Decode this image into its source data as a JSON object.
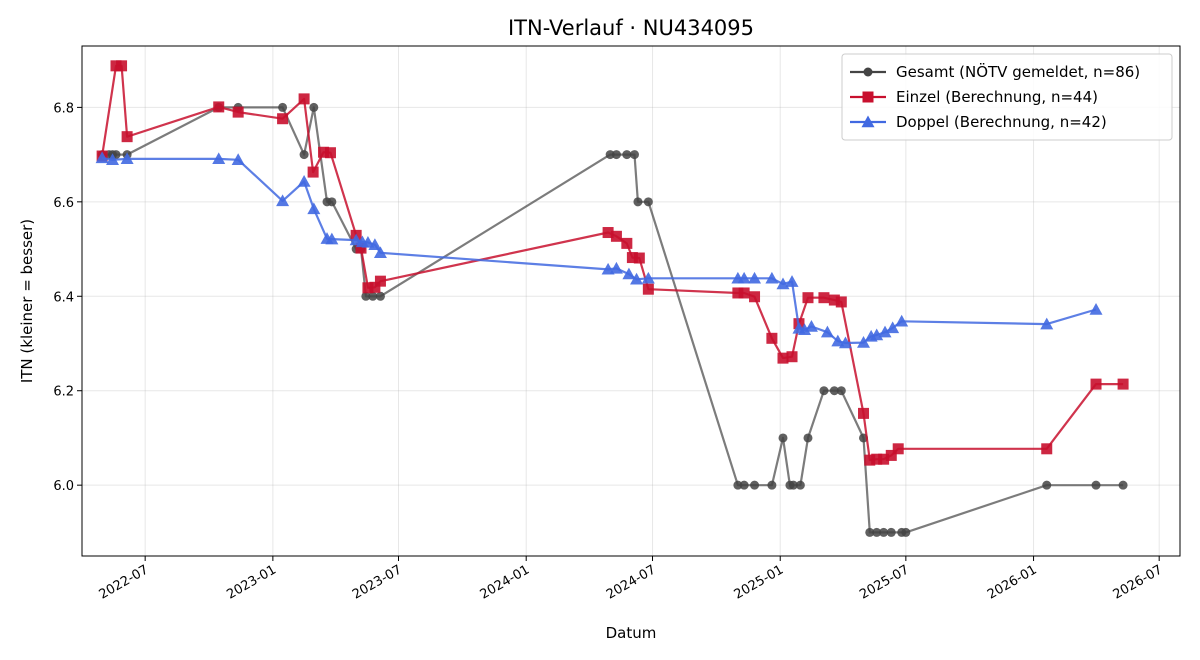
{
  "chart_data": {
    "type": "line",
    "title": "ITN-Verlauf · NU434095",
    "xlabel": "Datum",
    "ylabel": "ITN  (kleiner = besser)",
    "xlim": [
      "2022-04-01",
      "2026-07-31"
    ],
    "ylim": [
      5.85,
      6.93
    ],
    "x_ticks": [
      "2022-07",
      "2023-01",
      "2023-07",
      "2024-01",
      "2024-07",
      "2025-01",
      "2025-07",
      "2026-01",
      "2026-07"
    ],
    "y_ticks": [
      6.0,
      6.2,
      6.4,
      6.6,
      6.8
    ],
    "grid": true,
    "legend_position": "top-right",
    "series": [
      {
        "name": "Gesamt (NÖTV gemeldet, n=86)",
        "color": "#444444",
        "marker": "circle",
        "points": [
          [
            "2022-04-30",
            6.7
          ],
          [
            "2022-05-10",
            6.7
          ],
          [
            "2022-05-15",
            6.7
          ],
          [
            "2022-05-20",
            6.7
          ],
          [
            "2022-06-05",
            6.7
          ],
          [
            "2022-10-15",
            6.8
          ],
          [
            "2022-11-12",
            6.8
          ],
          [
            "2023-01-15",
            6.8
          ],
          [
            "2023-02-15",
            6.7
          ],
          [
            "2023-03-01",
            6.8
          ],
          [
            "2023-03-20",
            6.6
          ],
          [
            "2023-03-27",
            6.6
          ],
          [
            "2023-05-01",
            6.5
          ],
          [
            "2023-05-08",
            6.5
          ],
          [
            "2023-05-15",
            6.4
          ],
          [
            "2023-05-25",
            6.4
          ],
          [
            "2023-06-05",
            6.4
          ],
          [
            "2024-05-01",
            6.7
          ],
          [
            "2024-05-10",
            6.7
          ],
          [
            "2024-05-25",
            6.7
          ],
          [
            "2024-06-05",
            6.7
          ],
          [
            "2024-06-10",
            6.6
          ],
          [
            "2024-06-25",
            6.6
          ],
          [
            "2024-11-01",
            6.0
          ],
          [
            "2024-11-10",
            6.0
          ],
          [
            "2024-11-25",
            6.0
          ],
          [
            "2024-12-20",
            6.0
          ],
          [
            "2025-01-05",
            6.1
          ],
          [
            "2025-01-15",
            6.0
          ],
          [
            "2025-01-20",
            6.0
          ],
          [
            "2025-01-30",
            6.0
          ],
          [
            "2025-02-10",
            6.1
          ],
          [
            "2025-03-05",
            6.2
          ],
          [
            "2025-03-20",
            6.2
          ],
          [
            "2025-03-30",
            6.2
          ],
          [
            "2025-05-01",
            6.1
          ],
          [
            "2025-05-10",
            5.9
          ],
          [
            "2025-05-20",
            5.9
          ],
          [
            "2025-05-30",
            5.9
          ],
          [
            "2025-06-10",
            5.9
          ],
          [
            "2025-06-25",
            5.9
          ],
          [
            "2025-07-01",
            5.9
          ],
          [
            "2026-01-20",
            6.0
          ],
          [
            "2026-04-01",
            6.0
          ],
          [
            "2026-05-10",
            6.0
          ]
        ]
      },
      {
        "name": "Einzel (Berechnung, n=44)",
        "color": "#c8102e",
        "marker": "square",
        "points": [
          [
            "2022-04-30",
            6.697
          ],
          [
            "2022-05-20",
            6.888
          ],
          [
            "2022-05-28",
            6.888
          ],
          [
            "2022-06-05",
            6.738
          ],
          [
            "2022-10-15",
            6.801
          ],
          [
            "2022-11-12",
            6.79
          ],
          [
            "2023-01-15",
            6.776
          ],
          [
            "2023-02-15",
            6.818
          ],
          [
            "2023-02-28",
            6.663
          ],
          [
            "2023-03-15",
            6.705
          ],
          [
            "2023-03-25",
            6.704
          ],
          [
            "2023-05-01",
            6.529
          ],
          [
            "2023-05-08",
            6.502
          ],
          [
            "2023-05-18",
            6.418
          ],
          [
            "2023-05-28",
            6.419
          ],
          [
            "2023-06-05",
            6.432
          ],
          [
            "2024-04-28",
            6.535
          ],
          [
            "2024-05-10",
            6.527
          ],
          [
            "2024-05-25",
            6.512
          ],
          [
            "2024-06-02",
            6.482
          ],
          [
            "2024-06-12",
            6.481
          ],
          [
            "2024-06-25",
            6.415
          ],
          [
            "2024-11-01",
            6.407
          ],
          [
            "2024-11-10",
            6.407
          ],
          [
            "2024-11-25",
            6.399
          ],
          [
            "2024-12-20",
            6.311
          ],
          [
            "2025-01-05",
            6.269
          ],
          [
            "2025-01-18",
            6.272
          ],
          [
            "2025-01-28",
            6.342
          ],
          [
            "2025-02-10",
            6.397
          ],
          [
            "2025-03-05",
            6.397
          ],
          [
            "2025-03-20",
            6.392
          ],
          [
            "2025-03-30",
            6.388
          ],
          [
            "2025-05-01",
            6.152
          ],
          [
            "2025-05-10",
            6.053
          ],
          [
            "2025-05-20",
            6.055
          ],
          [
            "2025-05-30",
            6.055
          ],
          [
            "2025-06-10",
            6.063
          ],
          [
            "2025-06-20",
            6.077
          ],
          [
            "2026-01-20",
            6.077
          ],
          [
            "2026-04-01",
            6.214
          ],
          [
            "2026-05-10",
            6.214
          ]
        ]
      },
      {
        "name": "Doppel (Berechnung, n=42)",
        "color": "#4169e1",
        "marker": "triangle",
        "points": [
          [
            "2022-04-30",
            6.693
          ],
          [
            "2022-05-15",
            6.689
          ],
          [
            "2022-06-05",
            6.691
          ],
          [
            "2022-10-15",
            6.691
          ],
          [
            "2022-11-12",
            6.689
          ],
          [
            "2023-01-15",
            6.602
          ],
          [
            "2023-02-15",
            6.643
          ],
          [
            "2023-03-01",
            6.585
          ],
          [
            "2023-03-20",
            6.522
          ],
          [
            "2023-03-27",
            6.521
          ],
          [
            "2023-05-01",
            6.519
          ],
          [
            "2023-05-10",
            6.515
          ],
          [
            "2023-05-18",
            6.514
          ],
          [
            "2023-05-28",
            6.509
          ],
          [
            "2023-06-05",
            6.492
          ],
          [
            "2024-04-28",
            6.457
          ],
          [
            "2024-05-10",
            6.459
          ],
          [
            "2024-05-28",
            6.447
          ],
          [
            "2024-06-08",
            6.436
          ],
          [
            "2024-06-25",
            6.438
          ],
          [
            "2024-11-01",
            6.438
          ],
          [
            "2024-11-10",
            6.438
          ],
          [
            "2024-11-25",
            6.438
          ],
          [
            "2024-12-20",
            6.438
          ],
          [
            "2025-01-05",
            6.426
          ],
          [
            "2025-01-18",
            6.431
          ],
          [
            "2025-01-28",
            6.332
          ],
          [
            "2025-02-05",
            6.329
          ],
          [
            "2025-02-15",
            6.336
          ],
          [
            "2025-03-10",
            6.324
          ],
          [
            "2025-03-25",
            6.305
          ],
          [
            "2025-04-05",
            6.301
          ],
          [
            "2025-05-01",
            6.302
          ],
          [
            "2025-05-12",
            6.315
          ],
          [
            "2025-05-20",
            6.318
          ],
          [
            "2025-06-01",
            6.324
          ],
          [
            "2025-06-12",
            6.333
          ],
          [
            "2025-06-25",
            6.347
          ],
          [
            "2026-01-20",
            6.341
          ],
          [
            "2026-04-01",
            6.372
          ]
        ]
      }
    ]
  }
}
